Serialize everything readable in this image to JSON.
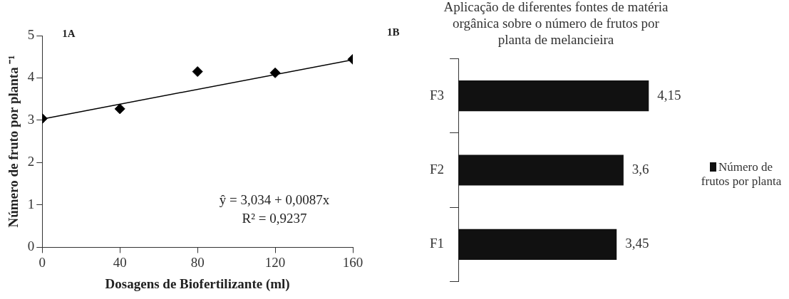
{
  "chart_data": [
    {
      "type": "scatter",
      "xlabel": "Dosagens de Biofertilizante (ml)",
      "ylabel": "Número de fruto por planta ⁻¹",
      "annotations": [
        "1A",
        "ŷ = 3,034 + 0,0087x",
        "R² = 0,9237"
      ],
      "xlim": [
        0,
        160
      ],
      "xticks": [
        0,
        40,
        80,
        120,
        160
      ],
      "ylim": [
        0,
        5
      ],
      "yticks": [
        0,
        1,
        2,
        3,
        4,
        5
      ],
      "grid": false,
      "legend": false,
      "marker": "diamond",
      "series": [
        {
          "type": "scatter",
          "color": "#000000",
          "x": [
            0,
            40,
            80,
            120,
            160
          ],
          "values": [
            3.04,
            3.27,
            4.15,
            4.12,
            4.44
          ]
        },
        {
          "type": "line",
          "color": "#000000",
          "x": [
            0,
            160
          ],
          "values": [
            3.03,
            4.43
          ],
          "marker": "none"
        }
      ]
    },
    {
      "type": "bar",
      "orientation": "horizontal",
      "title": "Aplicação de diferentes fontes de matéria orgânica sobre o número de frutos por planta de melancieira",
      "annotations": [
        "1B"
      ],
      "categories": [
        "F3",
        "F2",
        "F1"
      ],
      "tick_labels": "y",
      "legend": "right",
      "grid": false,
      "series": [
        {
          "name": "Número de frutos por planta",
          "color": "#111111",
          "values": [
            4.15,
            3.6,
            3.45
          ],
          "value_labels": [
            "4,15",
            "3,6",
            "3,45"
          ]
        }
      ]
    }
  ]
}
